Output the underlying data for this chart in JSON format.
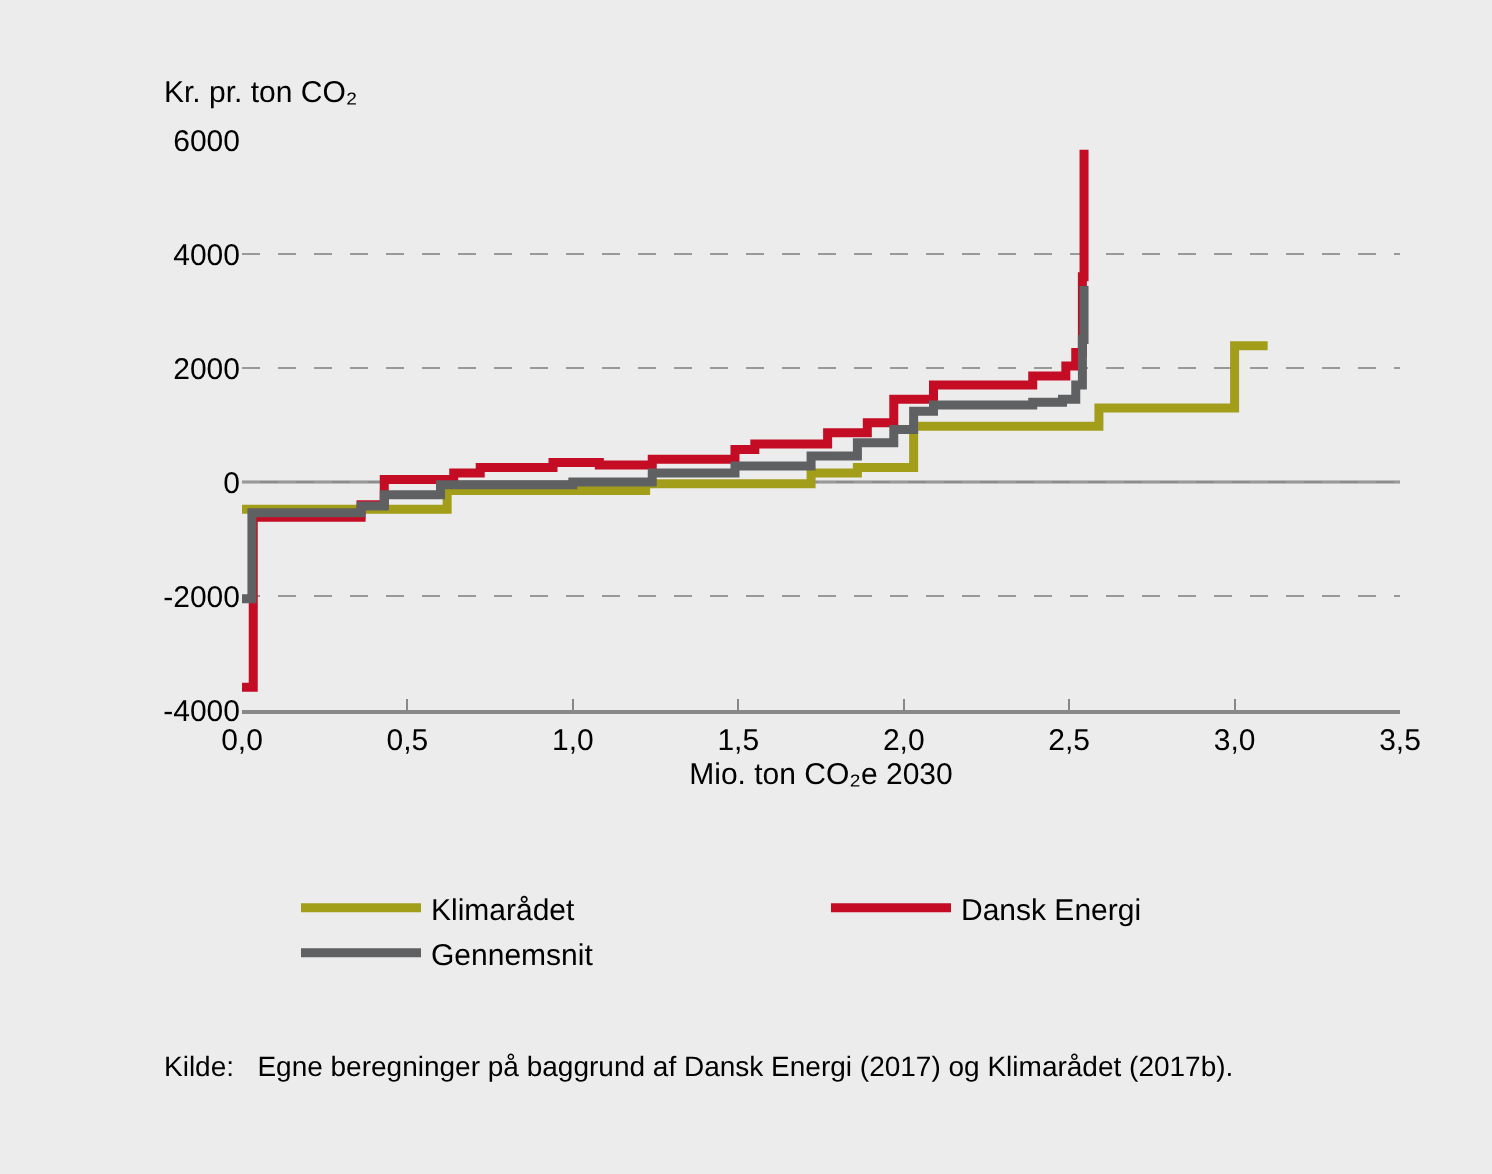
{
  "chart_data": {
    "type": "step",
    "ylabel": "Kr. pr. ton CO₂",
    "xlabel": "Mio. ton CO₂e 2030",
    "xlim": [
      0,
      3.5
    ],
    "xticks": [
      {
        "value": 0,
        "label": "0,0"
      },
      {
        "value": 0.5,
        "label": "0,5"
      },
      {
        "value": 1,
        "label": "1,0"
      },
      {
        "value": 1.5,
        "label": "1,5"
      },
      {
        "value": 2,
        "label": "2,0"
      },
      {
        "value": 2.5,
        "label": "2,5"
      },
      {
        "value": 3,
        "label": "3,0"
      },
      {
        "value": 3.5,
        "label": "3,5"
      }
    ],
    "ylim": [
      -4000,
      6000
    ],
    "yticks": [
      -4000,
      -2000,
      0,
      2000,
      4000,
      6000
    ],
    "grid": "y",
    "legend": "bottom",
    "marker": "none",
    "line_style": "solid",
    "ref_lines": [
      {
        "axis": "y",
        "value": 0,
        "color": "#8c8c8c"
      }
    ],
    "series": [
      {
        "name": "Klimarådet",
        "color": "#a39e1a",
        "x": [
          0,
          0.62,
          1.22,
          1.72,
          1.86,
          2.03,
          2.59,
          3.0,
          3.1
        ],
        "values": [
          -480,
          -150,
          -30,
          160,
          255,
          980,
          1300,
          2390,
          2390
        ]
      },
      {
        "name": "Dansk Energi",
        "color": "#c40c24",
        "x": [
          0,
          0.034,
          0.36,
          0.43,
          0.64,
          0.72,
          0.94,
          1.08,
          1.24,
          1.49,
          1.55,
          1.77,
          1.89,
          1.97,
          2.09,
          2.39,
          2.49,
          2.52,
          2.54,
          2.545
        ],
        "values": [
          -3600,
          -620,
          -400,
          45,
          160,
          255,
          340,
          300,
          400,
          570,
          665,
          865,
          1040,
          1450,
          1700,
          1860,
          2035,
          2270,
          3600,
          5830
        ]
      },
      {
        "name": "Gennemsnit",
        "color": "#5f6062",
        "x": [
          0,
          0.03,
          0.36,
          0.43,
          0.6,
          1.0,
          1.24,
          1.49,
          1.72,
          1.86,
          1.97,
          2.03,
          2.09,
          2.39,
          2.48,
          2.52,
          2.54,
          2.545
        ],
        "values": [
          -2050,
          -540,
          -420,
          -225,
          -50,
          0,
          160,
          280,
          455,
          690,
          920,
          1240,
          1350,
          1400,
          1450,
          1700,
          2500,
          3440
        ]
      }
    ],
    "annotations": [
      "Kilde:   Egne beregninger på baggrund af Dansk Energi (2017) og Klimarådet (2017b)."
    ]
  }
}
